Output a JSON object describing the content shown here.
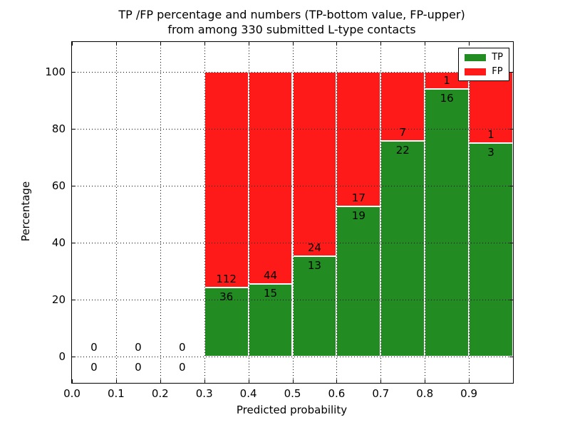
{
  "title": {
    "line1": "TP /FP percentage and numbers (TP-bottom value, FP-upper)",
    "line2": "from among 330 submitted L-type contacts"
  },
  "axes": {
    "xlabel": "Predicted probability",
    "ylabel": "Percentage"
  },
  "legend": {
    "entries": [
      {
        "label": "TP",
        "color": "#228b22"
      },
      {
        "label": "FP",
        "color": "#ff1a1a"
      }
    ]
  },
  "chart_data": {
    "type": "bar",
    "stacked": true,
    "title": "TP /FP percentage and numbers (TP-bottom value, FP-upper) from among 330 submitted L-type contacts",
    "xlabel": "Predicted probability",
    "ylabel": "Percentage",
    "xlim": [
      0.0,
      1.0
    ],
    "ylim": [
      -9.3,
      110.6
    ],
    "grid": true,
    "legend_position": "upper right",
    "total_contacts": 330,
    "bin_edges": [
      0.0,
      0.1,
      0.2,
      0.3,
      0.4,
      0.5,
      0.6,
      0.7,
      0.8,
      0.9,
      1.0
    ],
    "x_ticks": [
      {
        "v": 0.0,
        "label": "0.0"
      },
      {
        "v": 0.1,
        "label": "0.1"
      },
      {
        "v": 0.2,
        "label": "0.2"
      },
      {
        "v": 0.3,
        "label": "0.3"
      },
      {
        "v": 0.4,
        "label": "0.4"
      },
      {
        "v": 0.5,
        "label": "0.5"
      },
      {
        "v": 0.6,
        "label": "0.6"
      },
      {
        "v": 0.7,
        "label": "0.7"
      },
      {
        "v": 0.8,
        "label": "0.8"
      },
      {
        "v": 0.9,
        "label": "0.9"
      }
    ],
    "y_ticks": [
      {
        "v": 0,
        "label": "0"
      },
      {
        "v": 20,
        "label": "20"
      },
      {
        "v": 40,
        "label": "40"
      },
      {
        "v": 60,
        "label": "60"
      },
      {
        "v": 80,
        "label": "80"
      },
      {
        "v": 100,
        "label": "100"
      }
    ],
    "series": [
      {
        "name": "TP",
        "color": "#228b22",
        "counts": [
          0,
          0,
          0,
          36,
          15,
          13,
          19,
          22,
          16,
          3
        ]
      },
      {
        "name": "FP",
        "color": "#ff1a1a",
        "counts": [
          0,
          0,
          0,
          112,
          44,
          24,
          17,
          7,
          1,
          1
        ]
      }
    ],
    "tp_percent_by_bin": [
      null,
      null,
      null,
      24.3,
      25.4,
      35.1,
      52.8,
      75.9,
      94.1,
      75.0
    ]
  }
}
